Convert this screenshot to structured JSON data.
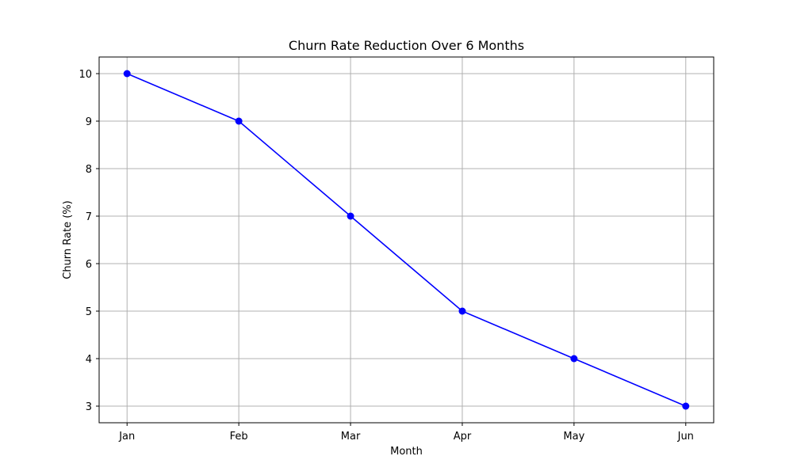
{
  "chart_data": {
    "type": "line",
    "title": "Churn Rate Reduction Over 6 Months",
    "xlabel": "Month",
    "ylabel": "Churn Rate (%)",
    "categories": [
      "Jan",
      "Feb",
      "Mar",
      "Apr",
      "May",
      "Jun"
    ],
    "series": [
      {
        "values": [
          10,
          9,
          7,
          5,
          4,
          3
        ],
        "color": "#0000ff",
        "marker": "circle"
      }
    ],
    "ylim": [
      2.65,
      10.35
    ],
    "yticks": [
      3,
      4,
      5,
      6,
      7,
      8,
      9,
      10
    ],
    "grid": true,
    "legend": "none"
  }
}
